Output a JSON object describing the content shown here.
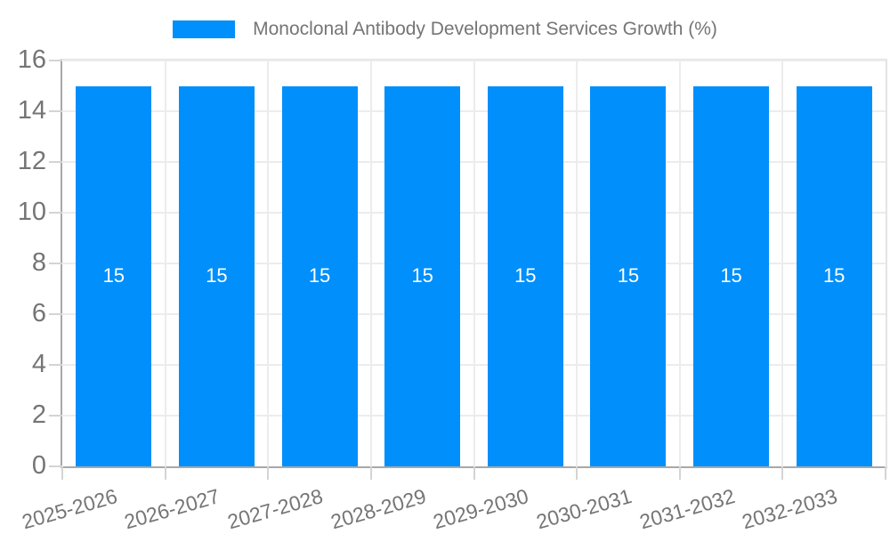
{
  "legend": {
    "items": [
      {
        "label": "Monoclonal Antibody Development Services Growth (%)",
        "swatch_color": "#008ffb"
      }
    ],
    "position": "top-center"
  },
  "chart_data": {
    "type": "bar",
    "title": "Monoclonal Antibody Development Services Growth (%)",
    "categories": [
      "2025-2026",
      "2026-2027",
      "2027-2028",
      "2028-2029",
      "2029-2030",
      "2030-2031",
      "2031-2032",
      "2032-2033"
    ],
    "series": [
      {
        "name": "Monoclonal Antibody Development Services Growth (%)",
        "values": [
          15,
          15,
          15,
          15,
          15,
          15,
          15,
          15
        ],
        "color": "#008ffb"
      }
    ],
    "bar_value_labels": [
      "15",
      "15",
      "15",
      "15",
      "15",
      "15",
      "15",
      "15"
    ],
    "xlabel": "",
    "ylabel": "",
    "ylim": [
      0,
      16
    ],
    "yticks": [
      0,
      2,
      4,
      6,
      8,
      10,
      12,
      14,
      16
    ],
    "grid": true,
    "x_label_rotation_deg": -16,
    "legend_position": "top"
  },
  "colors": {
    "bar": "#008ffb",
    "bar_value_text": "#ffffff",
    "axis_text": "#757575",
    "legend_text": "#757575",
    "gridline": "#ececec",
    "tick": "#d4d4d4",
    "axis_spine": "#a8a8a8",
    "plot_border": "#e4e4e4",
    "background": "#ffffff"
  }
}
